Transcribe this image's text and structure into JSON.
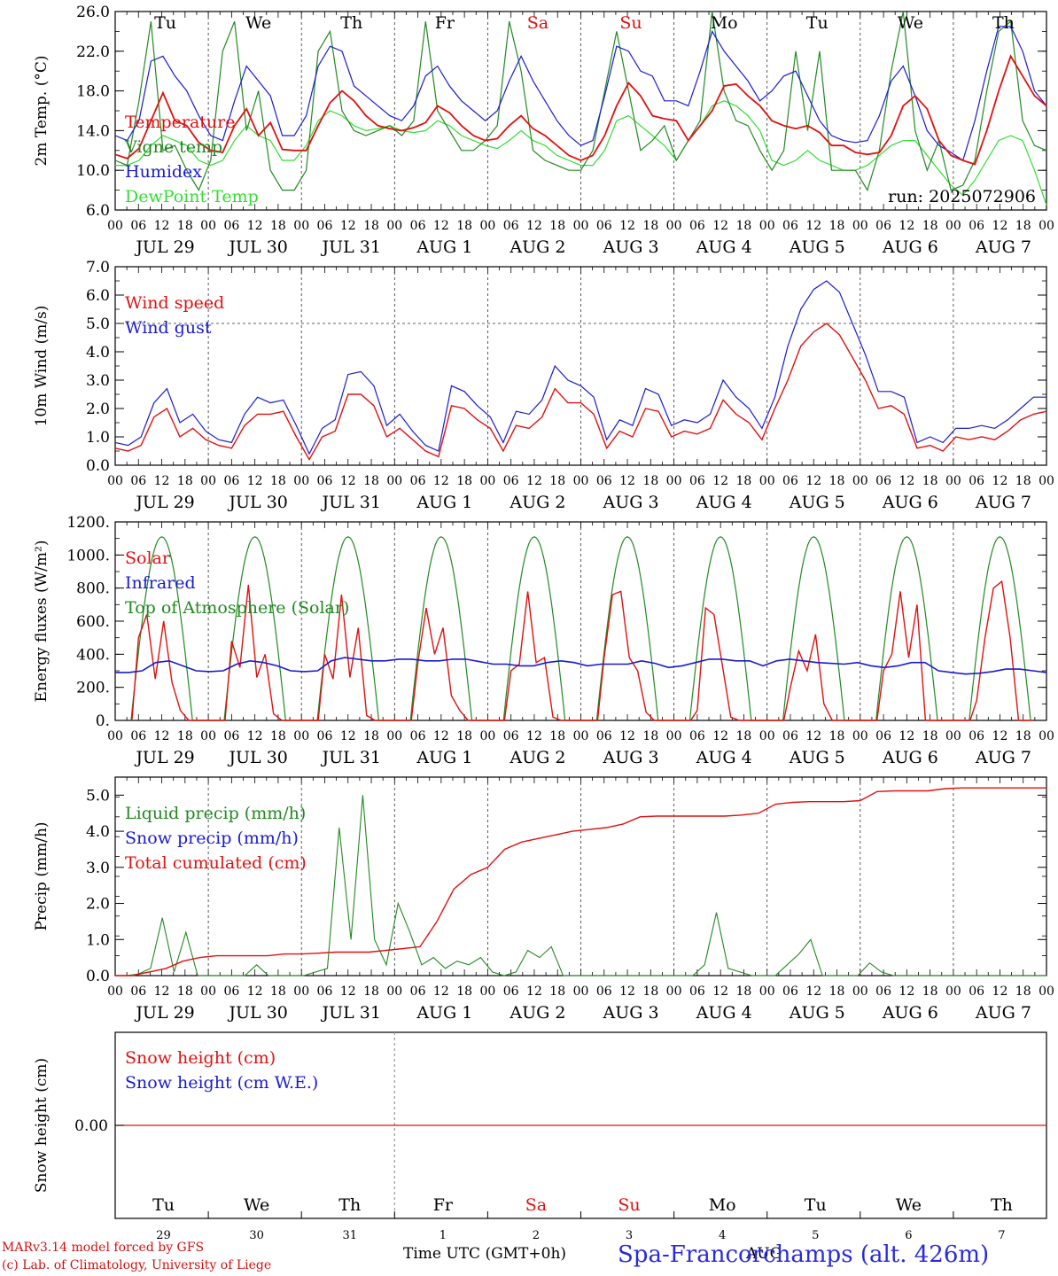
{
  "chart_data": [
    {
      "type": "line",
      "ylabel": "2m Temp. (°C)",
      "ylim": [
        6.0,
        26.0
      ],
      "yticks": [
        "6.0",
        "10.0",
        "14.0",
        "18.0",
        "22.0",
        "26.0"
      ],
      "run_label": "run: 2025072906",
      "series": [
        {
          "name": "Temperature",
          "color": "#e01010",
          "values": [
            11.6,
            11.2,
            12.2,
            15.0,
            17.8,
            15.0,
            14.5,
            12.8,
            12.0,
            11.8,
            14.5,
            16.2,
            13.5,
            14.8,
            12.1,
            12.0,
            12.0,
            14.5,
            16.8,
            18.0,
            17.0,
            15.5,
            14.5,
            14.2,
            14.0,
            14.3,
            14.8,
            16.5,
            15.8,
            14.5,
            13.5,
            13.0,
            13.2,
            14.5,
            15.5,
            14.2,
            13.5,
            12.5,
            11.5,
            11.0,
            11.5,
            13.5,
            16.5,
            18.8,
            17.5,
            15.5,
            15.2,
            15.0,
            13.0,
            14.5,
            16.0,
            18.5,
            18.7,
            17.5,
            16.5,
            15.0,
            14.5,
            14.2,
            14.5,
            13.8,
            12.5,
            12.5,
            11.8,
            11.6,
            11.8,
            13.5,
            16.5,
            17.5,
            16.2,
            13.0,
            11.5,
            11.0,
            10.6,
            14.0,
            18.0,
            21.5,
            19.5,
            17.5,
            16.5
          ]
        },
        {
          "name": "Vigne temp",
          "color": "#228822",
          "values": [
            11.0,
            10.5,
            17.0,
            25.0,
            12.0,
            12.5,
            10.0,
            8.0,
            11.0,
            22.0,
            25.0,
            14.0,
            18.0,
            10.0,
            8.0,
            8.0,
            10.0,
            22.0,
            24.0,
            16.0,
            14.0,
            13.5,
            14.0,
            14.5,
            13.5,
            15.0,
            25.0,
            16.0,
            14.0,
            12.0,
            12.0,
            13.0,
            14.5,
            25.0,
            20.0,
            12.0,
            11.0,
            10.5,
            10.0,
            10.0,
            12.0,
            18.0,
            24.0,
            18.0,
            12.0,
            13.0,
            14.5,
            11.0,
            13.0,
            15.0,
            26.0,
            18.0,
            15.0,
            14.5,
            12.0,
            10.0,
            12.0,
            22.0,
            14.0,
            22.0,
            10.0,
            10.0,
            10.0,
            8.0,
            12.0,
            20.0,
            26.0,
            14.0,
            10.0,
            13.0,
            8.0,
            8.5,
            11.0,
            18.0,
            24.0,
            25.0,
            15.0,
            12.5,
            12.0
          ]
        },
        {
          "name": "Humidex",
          "color": "#1a1ad0",
          "values": [
            13.5,
            13.0,
            15.0,
            21.0,
            21.5,
            19.5,
            18.0,
            15.5,
            13.5,
            13.0,
            17.0,
            20.5,
            19.0,
            17.5,
            13.5,
            13.5,
            15.5,
            20.5,
            22.5,
            22.0,
            18.5,
            17.5,
            16.5,
            15.5,
            15.0,
            16.5,
            19.5,
            20.5,
            18.5,
            17.0,
            16.0,
            15.0,
            16.0,
            19.0,
            21.5,
            19.0,
            17.0,
            15.0,
            13.5,
            12.5,
            13.0,
            17.5,
            22.5,
            22.0,
            20.0,
            19.5,
            17.0,
            17.0,
            16.5,
            20.0,
            24.0,
            22.0,
            20.5,
            19.0,
            17.0,
            18.0,
            19.5,
            20.0,
            17.5,
            15.0,
            13.5,
            13.0,
            12.8,
            13.0,
            15.5,
            19.0,
            20.5,
            17.5,
            14.0,
            12.5,
            11.8,
            11.0,
            15.0,
            20.0,
            24.5,
            24.5,
            22.0,
            18.0,
            16.5
          ]
        },
        {
          "name": "DewPoint Temp",
          "color": "#33dd33",
          "values": [
            10.5,
            10.5,
            11.0,
            12.5,
            13.5,
            13.0,
            12.5,
            11.0,
            10.5,
            11.0,
            13.0,
            14.5,
            13.5,
            13.0,
            11.0,
            11.0,
            12.5,
            15.0,
            16.0,
            15.5,
            14.5,
            14.0,
            14.2,
            14.5,
            14.0,
            13.8,
            14.0,
            15.0,
            14.5,
            13.5,
            13.0,
            12.5,
            12.2,
            13.0,
            14.0,
            13.0,
            12.5,
            11.5,
            11.0,
            10.5,
            10.5,
            12.0,
            15.0,
            15.5,
            14.5,
            13.5,
            12.5,
            11.0,
            13.0,
            14.5,
            16.5,
            17.0,
            16.5,
            15.5,
            14.0,
            11.0,
            10.5,
            11.0,
            12.0,
            11.0,
            10.5,
            10.0,
            10.0,
            10.5,
            11.5,
            12.5,
            13.0,
            13.0,
            11.5,
            10.0,
            8.5,
            7.5,
            9.0,
            11.0,
            13.0,
            13.5,
            13.0,
            10.0,
            6.5
          ]
        }
      ]
    },
    {
      "type": "line",
      "ylabel": "10m Wind (m/s)",
      "ylim": [
        0.0,
        7.0
      ],
      "yticks": [
        "0.0",
        "1.0",
        "2.0",
        "3.0",
        "4.0",
        "5.0",
        "6.0",
        "7.0"
      ],
      "reference_line": 5.0,
      "series": [
        {
          "name": "Wind speed",
          "color": "#e01010",
          "values": [
            0.6,
            0.5,
            0.7,
            1.7,
            2.0,
            1.0,
            1.3,
            0.9,
            0.7,
            0.6,
            1.4,
            1.8,
            1.8,
            1.9,
            1.0,
            0.2,
            1.0,
            1.2,
            2.5,
            2.5,
            2.1,
            1.0,
            1.3,
            0.9,
            0.5,
            0.3,
            2.1,
            2.0,
            1.6,
            1.3,
            0.5,
            1.4,
            1.3,
            1.7,
            2.7,
            2.2,
            2.2,
            1.8,
            0.6,
            1.2,
            1.0,
            2.0,
            1.9,
            1.0,
            1.2,
            1.1,
            1.3,
            2.3,
            1.8,
            1.5,
            0.9,
            2.0,
            3.0,
            4.2,
            4.7,
            5.0,
            4.6,
            3.8,
            3.0,
            2.0,
            2.1,
            1.8,
            0.6,
            0.7,
            0.5,
            1.0,
            0.9,
            1.0,
            0.9,
            1.2,
            1.6,
            1.8,
            1.9
          ]
        },
        {
          "name": "Wind gust",
          "color": "#1a1ad0",
          "values": [
            0.8,
            0.7,
            1.0,
            2.2,
            2.7,
            1.5,
            1.8,
            1.2,
            0.9,
            0.8,
            1.8,
            2.4,
            2.2,
            2.3,
            1.4,
            0.4,
            1.3,
            1.6,
            3.2,
            3.3,
            2.8,
            1.4,
            1.8,
            1.2,
            0.7,
            0.5,
            2.8,
            2.6,
            2.1,
            1.7,
            0.8,
            1.9,
            1.8,
            2.3,
            3.5,
            3.0,
            2.8,
            2.4,
            0.9,
            1.6,
            1.4,
            2.7,
            2.5,
            1.4,
            1.6,
            1.5,
            1.8,
            3.0,
            2.4,
            2.0,
            1.3,
            2.4,
            4.2,
            5.5,
            6.2,
            6.5,
            6.1,
            5.0,
            3.9,
            2.6,
            2.6,
            2.4,
            0.8,
            1.0,
            0.8,
            1.3,
            1.3,
            1.4,
            1.3,
            1.6,
            2.0,
            2.4,
            2.4
          ]
        }
      ]
    },
    {
      "type": "line",
      "ylabel": "Energy fluxes (W/m²)",
      "ylim": [
        0,
        1200
      ],
      "yticks": [
        "0.",
        "200.",
        "400.",
        "600.",
        "800.",
        "1000.",
        "1200."
      ],
      "series": [
        {
          "name": "Solar",
          "color": "#e01010",
          "values_note": "",
          "days": [
            [
              500,
              640,
              250,
              600,
              230,
              60,
              0
            ],
            [
              480,
              320,
              820,
              260,
              400,
              40,
              0
            ],
            [
              400,
              250,
              760,
              260,
              560,
              30,
              0
            ],
            [
              350,
              680,
              400,
              560,
              150,
              60,
              0
            ],
            [
              300,
              340,
              780,
              350,
              380,
              20,
              0
            ],
            [
              380,
              760,
              780,
              380,
              300,
              50,
              0
            ],
            [
              60,
              680,
              640,
              330,
              20,
              0,
              0
            ],
            [
              200,
              420,
              300,
              520,
              100,
              0,
              0
            ],
            [
              300,
              400,
              780,
              380,
              700,
              0,
              0
            ],
            [
              120,
              500,
              800,
              840,
              500,
              0,
              0
            ]
          ]
        },
        {
          "name": "Infrared",
          "color": "#1a1ad0",
          "values": [
            290,
            290,
            300,
            350,
            360,
            330,
            300,
            295,
            300,
            340,
            360,
            350,
            330,
            300,
            295,
            300,
            360,
            380,
            370,
            360,
            360,
            370,
            370,
            360,
            360,
            370,
            370,
            355,
            340,
            340,
            330,
            330,
            350,
            360,
            350,
            330,
            340,
            340,
            340,
            360,
            345,
            320,
            330,
            350,
            370,
            370,
            360,
            360,
            330,
            360,
            370,
            360,
            350,
            345,
            340,
            350,
            330,
            320,
            330,
            350,
            350,
            300,
            290,
            280,
            285,
            295,
            310,
            310,
            300,
            290
          ]
        },
        {
          "name": "Top of Atmosphere (Solar)",
          "color": "#228822",
          "peak": 1110
        }
      ]
    },
    {
      "type": "line",
      "ylabel": "Precip (mm/h)",
      "ylim": [
        0.0,
        5.5
      ],
      "yticks": [
        "0.0",
        "1.0",
        "2.0",
        "3.0",
        "4.0",
        "5.0"
      ],
      "series": [
        {
          "name": "Liquid precip (mm/h)",
          "color": "#228822",
          "values": [
            0,
            0,
            0.05,
            0.2,
            1.6,
            0.1,
            1.2,
            0,
            0,
            0,
            0,
            0,
            0.3,
            0,
            0,
            0,
            0,
            0.1,
            0.2,
            4.1,
            1.0,
            5.0,
            1.0,
            0.3,
            2.0,
            1.2,
            0.3,
            0.5,
            0.2,
            0.4,
            0.3,
            0.5,
            0.1,
            0,
            0.1,
            0.7,
            0.5,
            0.8,
            0,
            0,
            0,
            0,
            0,
            0,
            0,
            0,
            0,
            0,
            0,
            0,
            0.3,
            1.75,
            0.2,
            0.1,
            0,
            0,
            0,
            0.3,
            0.6,
            1.0,
            0,
            0,
            0,
            0,
            0.35,
            0.1,
            0,
            0,
            0,
            0,
            0,
            0,
            0,
            0,
            0,
            0,
            0,
            0,
            0,
            0
          ]
        },
        {
          "name": "Snow precip (mm/h)",
          "color": "#1a1ad0",
          "values": []
        },
        {
          "name": "Total cumulated (cm)",
          "color": "#e01010",
          "values": [
            0,
            0,
            0.1,
            0.2,
            0.4,
            0.5,
            0.55,
            0.55,
            0.55,
            0.55,
            0.6,
            0.6,
            0.62,
            0.65,
            0.65,
            0.65,
            0.7,
            0.75,
            0.8,
            1.5,
            2.4,
            2.8,
            3.0,
            3.5,
            3.7,
            3.8,
            3.9,
            4.0,
            4.05,
            4.1,
            4.2,
            4.4,
            4.42,
            4.42,
            4.42,
            4.42,
            4.42,
            4.45,
            4.5,
            4.75,
            4.8,
            4.82,
            4.82,
            4.82,
            4.85,
            5.1,
            5.12,
            5.12,
            5.12,
            5.18,
            5.2,
            5.2,
            5.2,
            5.2,
            5.2,
            5.2
          ]
        }
      ]
    },
    {
      "type": "line",
      "ylabel": "Snow height (cm)",
      "ytick": "0.00",
      "series": [
        {
          "name": "Snow height (cm)",
          "color": "#e01010",
          "values": [
            0,
            0
          ]
        },
        {
          "name": "Snow height (cm W.E.)",
          "color": "#1a1ad0",
          "values": []
        }
      ]
    }
  ],
  "x_axis": {
    "hour_ticks": [
      "00",
      "06",
      "12",
      "18"
    ],
    "last_tick": "00",
    "dates": [
      "JUL 29",
      "JUL 30",
      "JUL 31",
      "AUG  1",
      "AUG  2",
      "AUG  3",
      "AUG  4",
      "AUG  5",
      "AUG  6",
      "AUG  7"
    ],
    "weekdays": [
      "Tu",
      "We",
      "Th",
      "Fr",
      "Sa",
      "Su",
      "Mo",
      "Tu",
      "We",
      "Th"
    ],
    "weekend_index": [
      4,
      5
    ],
    "day_numbers": [
      "29",
      "30",
      "31",
      "1",
      "2",
      "3",
      "4",
      "5",
      "6",
      "7"
    ]
  },
  "footer": {
    "model_line1": "MARv3.14 model forced by GFS",
    "model_line2": "(c) Lab. of Climatology, University of Liege",
    "time_label": "Time UTC (GMT+0h)",
    "month_label": "AUG",
    "station": "Spa-Francorchamps (alt. 426m)"
  },
  "colors": {
    "weekday": "#000000",
    "weekend": "#e01010"
  }
}
